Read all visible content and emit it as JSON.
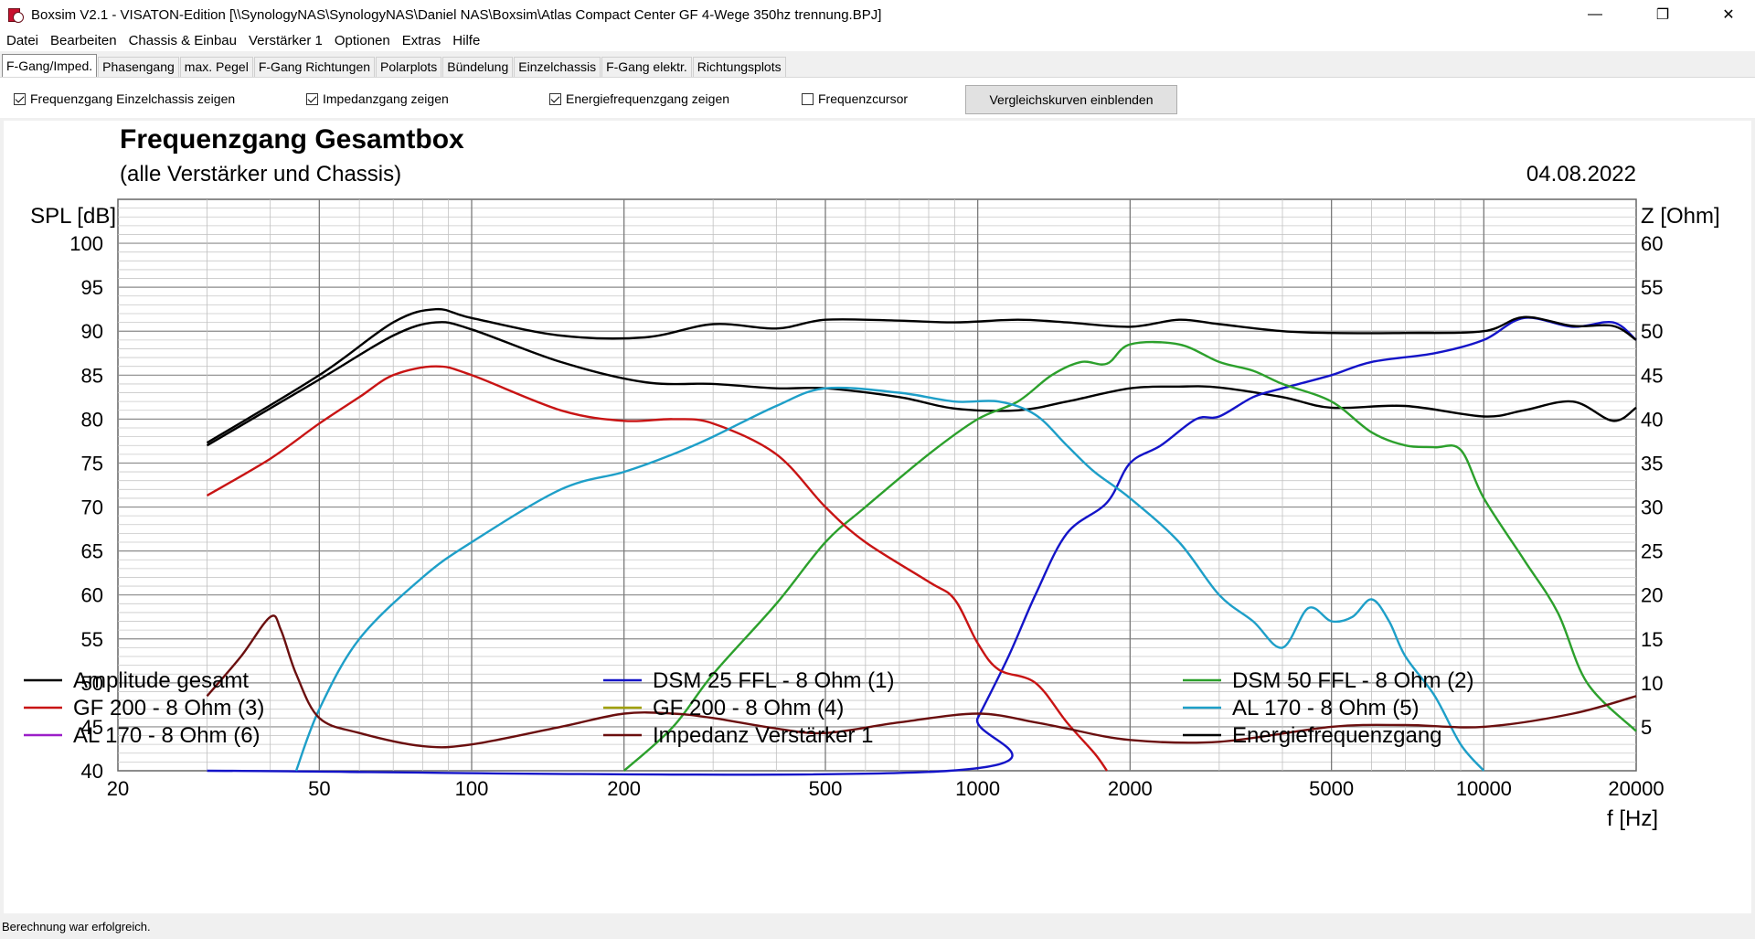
{
  "window": {
    "title": "Boxsim V2.1 - VISATON-Edition [\\\\SynologyNAS\\SynologyNAS\\Daniel NAS\\Boxsim\\Atlas Compact Center GF 4-Wege 350hz trennung.BPJ]",
    "minimize": "—",
    "maximize": "❐",
    "close": "✕"
  },
  "menu": [
    "Datei",
    "Bearbeiten",
    "Chassis & Einbau",
    "Verstärker 1",
    "Optionen",
    "Extras",
    "Hilfe"
  ],
  "tabs": [
    "F-Gang/Imped.",
    "Phasengang",
    "max. Pegel",
    "F-Gang Richtungen",
    "Polarplots",
    "Bündelung",
    "Einzelchassis",
    "F-Gang elektr.",
    "Richtungsplots"
  ],
  "options": {
    "einzelchassis": {
      "label": "Frequenzgang Einzelchassis zeigen",
      "checked": true
    },
    "impedanz": {
      "label": "Impedanzgang zeigen",
      "checked": true
    },
    "energie": {
      "label": "Energiefrequenzgang zeigen",
      "checked": true
    },
    "cursor": {
      "label": "Frequenzcursor",
      "checked": false
    },
    "compare_button": "Vergleichskurven einblenden"
  },
  "status": "Berechnung war erfolgreich.",
  "chart_data": {
    "type": "line",
    "title": "Frequenzgang Gesamtbox",
    "subtitle": "(alle Verstärker und Chassis)",
    "date": "04.08.2022",
    "ylabel": "SPL [dB]",
    "y2label": "Z [Ohm]",
    "xlabel": "f [Hz]",
    "xscale": "log",
    "xlim": [
      20,
      20000
    ],
    "ylim": [
      40,
      105
    ],
    "y2lim": [
      0,
      65
    ],
    "xticks": [
      20,
      50,
      100,
      200,
      500,
      1000,
      2000,
      5000,
      10000,
      20000
    ],
    "yticks": [
      40,
      45,
      50,
      55,
      60,
      65,
      70,
      75,
      80,
      85,
      90,
      95,
      100
    ],
    "y2ticks": [
      5,
      10,
      15,
      20,
      25,
      30,
      35,
      40,
      45,
      50,
      55,
      60
    ],
    "grid": true,
    "legend_position": "bottom",
    "series": [
      {
        "name": "Amplitude gesamt",
        "color": "#000000",
        "x": [
          30,
          50,
          70,
          85,
          100,
          150,
          220,
          300,
          400,
          500,
          700,
          900,
          1200,
          1500,
          2000,
          2500,
          3000,
          4000,
          5000,
          7000,
          10000,
          12000,
          15000,
          18000,
          20000
        ],
        "y": [
          77,
          84.5,
          89.5,
          91,
          90.2,
          86.5,
          84.2,
          84,
          83.5,
          83.5,
          82.5,
          81.2,
          81,
          82,
          83.5,
          83.7,
          83.6,
          82.5,
          81.3,
          81.5,
          80.3,
          81,
          82,
          79.8,
          81.3
        ]
      },
      {
        "name": "DSM 25 FFL - 8 Ohm (1)",
        "color": "#1414c8",
        "x": [
          30,
          880,
          1000,
          1150,
          1300,
          1500,
          1800,
          2000,
          2300,
          2700,
          3000,
          3500,
          4000,
          5000,
          6000,
          8000,
          10000,
          12000,
          15000,
          18000,
          20000
        ],
        "y": [
          40,
          40,
          46,
          53,
          60,
          67,
          70.5,
          75,
          77,
          80,
          80.3,
          82.5,
          83.5,
          85,
          86.5,
          87.5,
          89,
          91.5,
          90.5,
          91,
          89
        ]
      },
      {
        "name": "DSM 50 FFL - 8 Ohm (2)",
        "color": "#2ca02c",
        "x": [
          200,
          250,
          300,
          400,
          500,
          600,
          800,
          1000,
          1200,
          1400,
          1600,
          1800,
          2000,
          2500,
          3000,
          3500,
          4000,
          5000,
          6000,
          7000,
          8000,
          9000,
          10000,
          12000,
          14000,
          16000,
          20000
        ],
        "y": [
          40,
          45,
          51,
          59,
          66,
          70,
          76,
          80,
          82,
          85,
          86.5,
          86.3,
          88.5,
          88.5,
          86.5,
          85.5,
          84,
          82,
          78.5,
          77,
          76.8,
          76.5,
          71,
          64,
          58,
          50,
          44.5
        ]
      },
      {
        "name": "GF 200 - 8 Ohm (3)",
        "color": "#c81414",
        "x": [
          30,
          40,
          50,
          60,
          70,
          85,
          100,
          150,
          200,
          250,
          300,
          400,
          500,
          600,
          800,
          900,
          1000,
          1100,
          1300,
          1500,
          1700,
          1800
        ],
        "y": [
          71.3,
          75.5,
          79.5,
          82.5,
          85,
          86,
          85,
          81,
          79.8,
          80,
          79.5,
          76,
          70,
          66,
          61.5,
          59.5,
          54.5,
          51.5,
          50,
          45.5,
          42,
          40
        ]
      },
      {
        "name": "GF 200 - 8 Ohm (4)",
        "color": "#a0a000",
        "x": [],
        "y": []
      },
      {
        "name": "AL 170 - 8 Ohm (5)",
        "color": "#1e9fc8",
        "x": [
          45,
          50,
          60,
          80,
          100,
          150,
          200,
          250,
          300,
          400,
          500,
          700,
          900,
          1100,
          1300,
          1500,
          1700,
          2000,
          2500,
          3000,
          3500,
          4000,
          4500,
          5000,
          5500,
          6000,
          6500,
          7000,
          8000,
          9000,
          10000
        ],
        "y": [
          40,
          47,
          55,
          62,
          66,
          72,
          74,
          76,
          78,
          81.5,
          83.5,
          83,
          82,
          82,
          80.5,
          77,
          74,
          71,
          66,
          60,
          57,
          54,
          58.5,
          57,
          57.5,
          59.5,
          57,
          53,
          48.5,
          43,
          40
        ]
      },
      {
        "name": "AL 170 - 8 Ohm (6)",
        "color": "#9b1fc8",
        "x": [],
        "y": []
      },
      {
        "name": "Impedanz Verstärker 1",
        "color": "#6b0f0f",
        "axis": "right",
        "x": [
          30,
          35,
          40,
          42,
          45,
          50,
          60,
          80,
          100,
          150,
          200,
          250,
          300,
          400,
          500,
          700,
          1000,
          1300,
          1500,
          2000,
          3000,
          5000,
          7000,
          10000,
          15000,
          20000
        ],
        "y": [
          8.5,
          13,
          17.5,
          16,
          11,
          6,
          4.3,
          2.8,
          3,
          5,
          6.5,
          6.5,
          6,
          4.8,
          4.3,
          5.5,
          6.5,
          5.5,
          4.8,
          3.5,
          3.3,
          5,
          5.2,
          5,
          6.5,
          8.5
        ]
      },
      {
        "name": "Energiefrequenzgang",
        "color": "#000000",
        "x": [
          30,
          50,
          70,
          85,
          100,
          150,
          220,
          300,
          400,
          500,
          700,
          900,
          1200,
          1500,
          2000,
          2500,
          3000,
          4000,
          5000,
          7000,
          10000,
          12000,
          15000,
          18000,
          20000
        ],
        "y": [
          77.3,
          85,
          91,
          92.5,
          91.5,
          89.5,
          89.3,
          90.8,
          90.3,
          91.3,
          91.2,
          91,
          91.3,
          91,
          90.5,
          91.3,
          90.8,
          90,
          89.8,
          89.8,
          90,
          91.6,
          90.6,
          90.6,
          89
        ]
      }
    ]
  }
}
